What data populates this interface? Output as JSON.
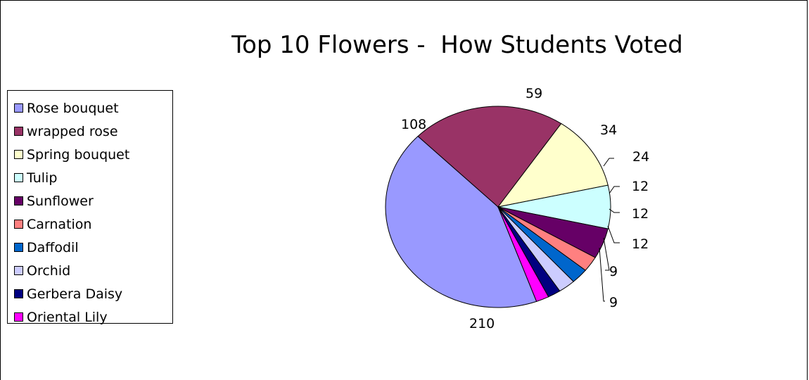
{
  "chart_data": {
    "type": "pie",
    "title": "Top 10 Flowers -  How Students Voted",
    "legend_position": "left",
    "slices": [
      {
        "label": "Rose bouquet",
        "value": 210,
        "color": "#9999FF"
      },
      {
        "label": "wrapped rose",
        "value": 108,
        "color": "#993366"
      },
      {
        "label": "Spring bouquet",
        "value": 59,
        "color": "#FFFFCC"
      },
      {
        "label": "Tulip",
        "value": 34,
        "color": "#CCFFFF"
      },
      {
        "label": "Sunflower",
        "value": 24,
        "color": "#660066"
      },
      {
        "label": "Carnation",
        "value": 12,
        "color": "#FF8080"
      },
      {
        "label": "Daffodil",
        "value": 12,
        "color": "#0066CC"
      },
      {
        "label": "Orchid",
        "value": 12,
        "color": "#CCCCFF"
      },
      {
        "label": "Gerbera Daisy",
        "value": 9,
        "color": "#000080"
      },
      {
        "label": "Oriental Lily",
        "value": 9,
        "color": "#FF00FF"
      }
    ]
  }
}
